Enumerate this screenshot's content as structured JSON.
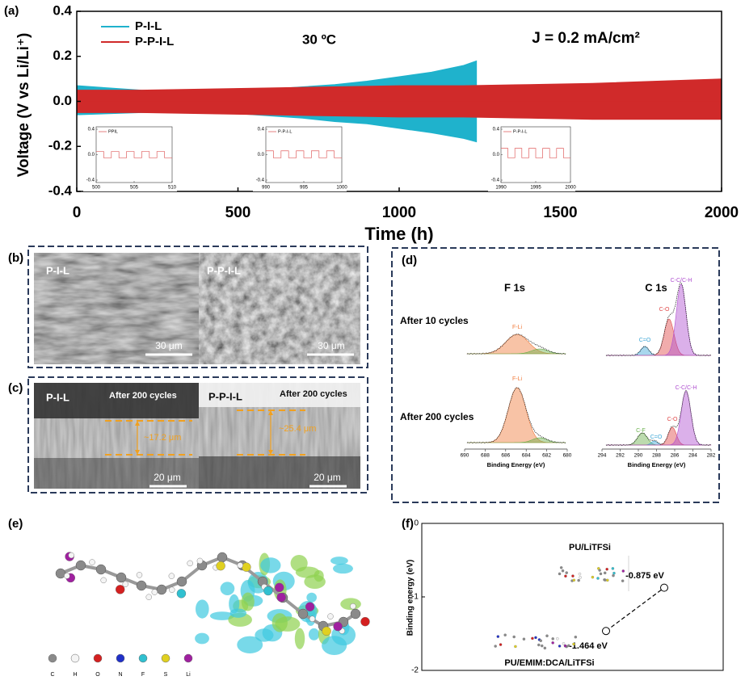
{
  "chart_data": [
    {
      "type": "area",
      "label": "(a)",
      "annotations": [
        "30 ºC",
        "J = 0.2 mA/cm²"
      ],
      "xlabel": "Time (h)",
      "ylabel": "Voltage (V vs Li/Li⁺)",
      "xlim": [
        0,
        2000
      ],
      "ylim": [
        -0.4,
        0.4
      ],
      "xticks": [
        0,
        500,
        1000,
        1500,
        2000
      ],
      "yticks": [
        0.4,
        0.2,
        {
          "value": 0,
          "label": "0.0"
        },
        -0.2,
        -0.4
      ],
      "legend": "upper left",
      "series": [
        {
          "name": "P-I-L",
          "color": "#1fb2cc",
          "x": [
            0,
            100,
            200,
            300,
            400,
            500,
            600,
            700,
            800,
            900,
            1000,
            1100,
            1200,
            1240
          ],
          "values": [
            0.07,
            0.06,
            0.05,
            0.045,
            0.045,
            0.05,
            0.055,
            0.065,
            0.075,
            0.09,
            0.11,
            0.13,
            0.16,
            0.18
          ],
          "lower": [
            -0.06,
            -0.055,
            -0.05,
            -0.045,
            -0.05,
            -0.055,
            -0.065,
            -0.075,
            -0.09,
            -0.1,
            -0.12,
            -0.14,
            -0.165,
            -0.18
          ]
        },
        {
          "name": "P-P-I-L",
          "color": "#d02a2a",
          "x": [
            0,
            200,
            400,
            600,
            800,
            1000,
            1200,
            1400,
            1600,
            1800,
            2000
          ],
          "values": [
            0.05,
            0.05,
            0.055,
            0.06,
            0.065,
            0.07,
            0.07,
            0.075,
            0.08,
            0.09,
            0.1
          ],
          "lower": [
            -0.05,
            -0.05,
            -0.055,
            -0.06,
            -0.065,
            -0.07,
            -0.07,
            -0.075,
            -0.08,
            -0.08,
            -0.08
          ]
        }
      ]
    },
    {
      "type": "line",
      "xlim": [
        500,
        510
      ],
      "ylim": [
        -0.4,
        0.4
      ],
      "xticks": [
        500,
        505,
        510
      ],
      "yticks": [
        0.4,
        {
          "value": 0,
          "label": "0.0"
        },
        -0.4
      ],
      "series": [
        {
          "name": "PPIL",
          "color": "#e06060",
          "x": [
            500,
            501,
            501,
            502,
            502,
            503,
            503,
            504,
            504,
            505,
            505,
            506,
            506,
            507,
            507,
            508,
            508,
            509,
            509,
            510
          ],
          "values": [
            0.05,
            0.05,
            -0.05,
            -0.05,
            0.05,
            0.05,
            -0.05,
            -0.05,
            0.05,
            0.05,
            -0.05,
            -0.05,
            0.05,
            0.05,
            -0.05,
            -0.05,
            0.05,
            0.05,
            -0.05,
            -0.05
          ]
        }
      ]
    },
    {
      "type": "line",
      "xlim": [
        990,
        1000
      ],
      "ylim": [
        -0.4,
        0.4
      ],
      "xticks": [
        990,
        995,
        1000
      ],
      "yticks": [
        0.4,
        {
          "value": 0,
          "label": "0.0"
        },
        -0.4
      ],
      "series": [
        {
          "name": "P-P-I-L",
          "color": "#e06060",
          "x": [
            990,
            991,
            991,
            992,
            992,
            993,
            993,
            994,
            994,
            995,
            995,
            996,
            996,
            997,
            997,
            998,
            998,
            999,
            999,
            1000
          ],
          "values": [
            0.06,
            0.06,
            -0.05,
            -0.05,
            0.06,
            0.06,
            -0.05,
            -0.05,
            0.06,
            0.06,
            -0.05,
            -0.05,
            0.06,
            0.06,
            -0.05,
            -0.05,
            0.06,
            0.06,
            -0.05,
            -0.05
          ]
        }
      ]
    },
    {
      "type": "line",
      "xlim": [
        1990,
        2000
      ],
      "ylim": [
        -0.4,
        0.4
      ],
      "xticks": [
        1990,
        1995,
        2000
      ],
      "yticks": [
        0.4,
        {
          "value": 0,
          "label": "0.0"
        },
        -0.4
      ],
      "series": [
        {
          "name": "P-P-I-L",
          "color": "#e06060",
          "x": [
            1990,
            1991,
            1991,
            1992,
            1992,
            1993,
            1993,
            1994,
            1994,
            1995,
            1995,
            1996,
            1996,
            1997,
            1997,
            1998,
            1998,
            1999,
            1999,
            2000
          ],
          "values": [
            0.1,
            0.1,
            -0.05,
            -0.05,
            0.1,
            0.1,
            -0.05,
            -0.05,
            0.1,
            0.1,
            -0.05,
            -0.05,
            0.1,
            0.1,
            -0.05,
            -0.05,
            0.1,
            0.1,
            -0.05,
            -0.05
          ]
        }
      ]
    },
    {
      "type": "scatter",
      "label": "(f)",
      "ylabel": "Binding energy (eV)",
      "ylim": [
        -2,
        0
      ],
      "yticks": [
        0,
        -1,
        -2
      ],
      "categories": [
        null,
        null
      ],
      "values": [
        -1.464,
        -0.875
      ],
      "value_labels": [
        "-1.464 eV",
        "-0.875 eV"
      ],
      "annotations": [
        "PU/LiTFSi",
        "PU/EMIM:DCA/LiTFSi"
      ],
      "color": "#000000",
      "line_style": "dashed"
    }
  ],
  "panels": {
    "b": {
      "label": "(b)",
      "images": [
        {
          "title": "P-I-L",
          "scale_bar": "30 μm"
        },
        {
          "title": "P-P-I-L",
          "scale_bar": "30 μm"
        }
      ]
    },
    "c": {
      "label": "(c)",
      "images": [
        {
          "title": "P-I-L",
          "note": "After 200 cycles",
          "thickness": "~17.2 μm",
          "scale_bar": "20 μm"
        },
        {
          "title": "P-P-I-L",
          "note": "After 200 cycles",
          "thickness": "~25.4 μm",
          "scale_bar": "20 μm"
        }
      ]
    },
    "d": {
      "label": "(d)",
      "columns": [
        "F 1s",
        "C 1s"
      ],
      "rows": [
        "After 10 cycles",
        "After 200 cycles"
      ],
      "spectra": [
        {
          "peaks": [
            "F-Li"
          ]
        },
        {
          "peaks": [
            "C=O",
            "C-O",
            "C-C/C-H"
          ]
        },
        {
          "peaks": [
            "F-Li"
          ]
        },
        {
          "peaks": [
            "C-F",
            "C=O",
            "C-O",
            "C-C/C-H"
          ]
        }
      ],
      "axes": [
        {
          "ticks": [
            690,
            688,
            686,
            684,
            682,
            680
          ],
          "label": "Binding Energy (eV)"
        },
        {
          "ticks": [
            294,
            292,
            290,
            288,
            286,
            284,
            282
          ],
          "label": "Binding Energy (eV)"
        }
      ]
    },
    "e": {
      "label": "(e)",
      "elements": [
        "C",
        "H",
        "O",
        "N",
        "F",
        "S",
        "Li"
      ]
    }
  }
}
